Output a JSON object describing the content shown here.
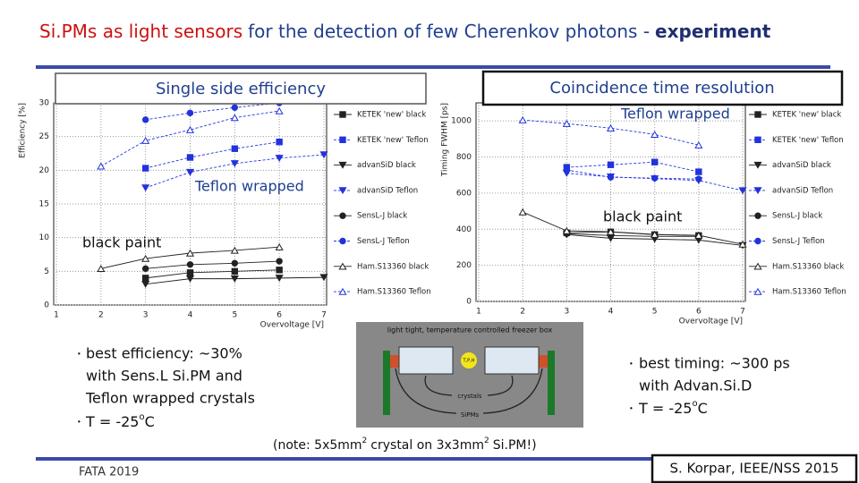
{
  "title": {
    "part1": "Si.PMs as light sensors",
    "part2": "for the detection of few Cherenkov photons -",
    "part3": "experiment"
  },
  "left_labels": {
    "box": "Single side efficiency",
    "teflon": "Teflon wrapped",
    "black": "black paint"
  },
  "right_labels": {
    "box": "Coincidence time resolution",
    "teflon": "Teflon wrapped",
    "black": "black paint"
  },
  "chart_data": [
    {
      "type": "line",
      "ylabel": "Efficiency [%]",
      "xlabel": "Overvoltage [V]",
      "x": [
        2,
        3,
        4,
        5,
        6,
        7
      ],
      "xlim": [
        1,
        7
      ],
      "xticks": [
        1,
        2,
        3,
        4,
        5,
        6,
        7
      ],
      "ylim": [
        0,
        30
      ],
      "yticks": [
        0,
        5,
        10,
        15,
        20,
        25,
        30
      ],
      "grid": true,
      "series": [
        {
          "name": "KETEK 'new' black",
          "color": "#222222",
          "marker": "square",
          "filled": true,
          "dashed": false,
          "values": [
            null,
            4.0,
            4.8,
            5.0,
            5.2,
            null
          ]
        },
        {
          "name": "KETEK 'new' Teflon",
          "color": "#2233dd",
          "marker": "square",
          "filled": true,
          "dashed": true,
          "values": [
            null,
            20.3,
            21.9,
            23.2,
            24.2,
            null
          ]
        },
        {
          "name": "advanSiD black",
          "color": "#222222",
          "marker": "triangle-down",
          "filled": true,
          "dashed": false,
          "values": [
            null,
            3.1,
            3.9,
            3.9,
            4.0,
            4.1
          ]
        },
        {
          "name": "advanSiD Teflon",
          "color": "#2233dd",
          "marker": "triangle-down",
          "filled": true,
          "dashed": true,
          "values": [
            null,
            17.4,
            19.7,
            21.0,
            21.8,
            22.3
          ]
        },
        {
          "name": "SensL-J black",
          "color": "#222222",
          "marker": "circle",
          "filled": true,
          "dashed": false,
          "values": [
            null,
            5.4,
            6.0,
            6.2,
            6.5,
            null
          ]
        },
        {
          "name": "SensL-J Teflon",
          "color": "#2233dd",
          "marker": "circle",
          "filled": true,
          "dashed": true,
          "values": [
            null,
            27.5,
            28.5,
            29.3,
            30,
            null
          ]
        },
        {
          "name": "Ham.S13360 black",
          "color": "#222222",
          "marker": "triangle-up",
          "filled": false,
          "dashed": false,
          "values": [
            5.4,
            6.9,
            7.7,
            8.1,
            8.6,
            null
          ]
        },
        {
          "name": "Ham.S13360 Teflon",
          "color": "#2233dd",
          "marker": "triangle-up",
          "filled": false,
          "dashed": true,
          "values": [
            20.6,
            24.4,
            26.0,
            27.8,
            28.8,
            null
          ]
        }
      ]
    },
    {
      "type": "line",
      "ylabel": "Timing FWHM [ps]",
      "xlabel": "Overvoltage [V]",
      "x": [
        2,
        3,
        4,
        5,
        6,
        7
      ],
      "xlim": [
        1,
        7
      ],
      "xticks": [
        1,
        2,
        3,
        4,
        5,
        6,
        7
      ],
      "ylim": [
        0,
        1100
      ],
      "yticks": [
        0,
        200,
        400,
        600,
        800,
        1000
      ],
      "grid": true,
      "series": [
        {
          "name": "KETEK 'new' black",
          "color": "#222222",
          "marker": "square",
          "filled": true,
          "dashed": false,
          "values": [
            null,
            380,
            385,
            370,
            365,
            null
          ]
        },
        {
          "name": "KETEK 'new' Teflon",
          "color": "#2233dd",
          "marker": "square",
          "filled": true,
          "dashed": true,
          "values": [
            null,
            743,
            757,
            772,
            718,
            null
          ]
        },
        {
          "name": "advanSiD black",
          "color": "#222222",
          "marker": "triangle-down",
          "filled": true,
          "dashed": false,
          "values": [
            null,
            370,
            350,
            345,
            340,
            310
          ]
        },
        {
          "name": "advanSiD Teflon",
          "color": "#2233dd",
          "marker": "triangle-down",
          "filled": true,
          "dashed": true,
          "values": [
            null,
            710,
            690,
            680,
            670,
            614
          ]
        },
        {
          "name": "SensL-J black",
          "color": "#222222",
          "marker": "circle",
          "filled": true,
          "dashed": false,
          "values": [
            null,
            375,
            365,
            360,
            360,
            null
          ]
        },
        {
          "name": "SensL-J Teflon",
          "color": "#2233dd",
          "marker": "circle",
          "filled": true,
          "dashed": true,
          "values": [
            null,
            728,
            688,
            683,
            678,
            null
          ]
        },
        {
          "name": "Ham.S13360 black",
          "color": "#222222",
          "marker": "triangle-up",
          "filled": false,
          "dashed": false,
          "values": [
            495,
            391,
            386,
            371,
            366,
            317
          ]
        },
        {
          "name": "Ham.S13360 Teflon",
          "color": "#2233dd",
          "marker": "triangle-up",
          "filled": false,
          "dashed": true,
          "values": [
            1005,
            985,
            960,
            925,
            866,
            null
          ]
        }
      ]
    }
  ],
  "diagram": {
    "box_label": "light tight, temperature controlled freezer box",
    "sensor": "T,P,H",
    "crystals": "crystals",
    "sipms": "SiPMs"
  },
  "note": {
    "a": "(note: 5x5mm",
    "sup1": "2",
    "b": "crystal  on 3x3mm",
    "sup2": "2",
    "c": "Si.PM!)"
  },
  "left_bullets": {
    "lines": [
      "best efficiency: ~30%",
      "with Sens.L Si.PM and",
      "Teflon wrapped crystals"
    ],
    "temp": "T = -25",
    "deg": "o",
    "unit": "C"
  },
  "right_bullets": {
    "lines": [
      "best timing: ~300 ps",
      "with Advan.Si.D"
    ],
    "temp": "T = -25",
    "deg": "o",
    "unit": "C"
  },
  "footer": {
    "event": "FATA 2019",
    "author": "S. Korpar, IEEE/NSS 2015"
  }
}
